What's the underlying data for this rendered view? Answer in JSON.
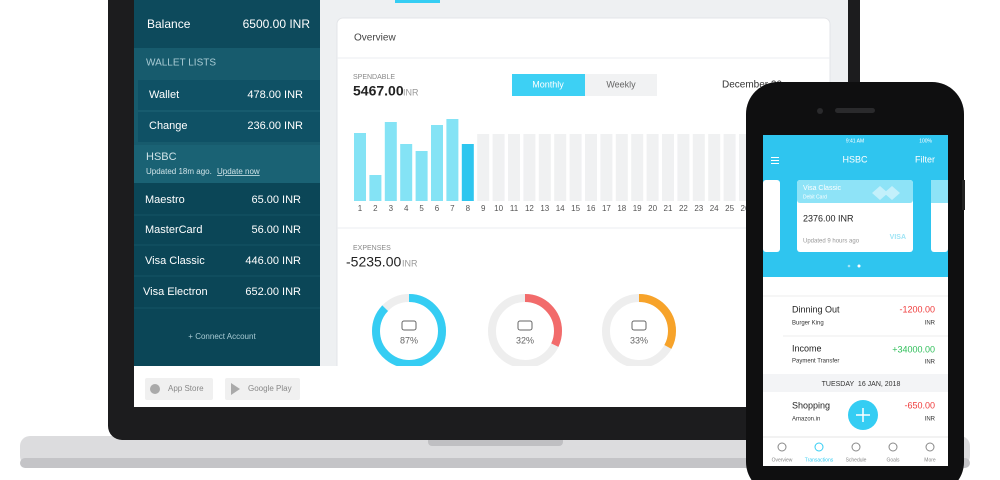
{
  "sidebar": {
    "balance_label": "Balance",
    "balance": "6500.00 INR",
    "wallet_header": "WALLET LISTS",
    "wallets": [
      {
        "name": "Wallet",
        "amount": "478.00 INR"
      },
      {
        "name": "Change",
        "amount": "236.00 INR"
      }
    ],
    "bank": {
      "name": "HSBC",
      "updated": "Updated 18m ago.",
      "update_link": "Update now"
    },
    "accounts": [
      {
        "name": "Maestro",
        "amount": "65.00 INR"
      },
      {
        "name": "MasterCard",
        "amount": "56.00 INR"
      },
      {
        "name": "Visa Classic",
        "amount": "446.00 INR"
      },
      {
        "name": "Visa Electron",
        "amount": "652.00 INR"
      }
    ],
    "connect": "+ Connect Account"
  },
  "overview": {
    "title": "Overview",
    "spendable_label": "SPENDABLE",
    "spendable_amount": "5467.00",
    "spendable_unit": "INR",
    "tabs": [
      "Monthly",
      "Weekly"
    ],
    "month": "December 20",
    "chart": {
      "type": "bar",
      "categories": [
        "1",
        "2",
        "3",
        "4",
        "5",
        "6",
        "7",
        "8",
        "9",
        "10",
        "11",
        "12",
        "13",
        "14",
        "15",
        "16",
        "17",
        "18",
        "19",
        "20",
        "21",
        "22",
        "23",
        "24",
        "25",
        "26"
      ],
      "values": [
        68,
        26,
        79,
        57,
        50,
        76,
        82,
        57,
        null,
        null,
        null,
        null,
        null,
        null,
        null,
        null,
        null,
        null,
        null,
        null,
        null,
        null,
        null,
        null,
        null,
        null
      ],
      "ylim": [
        0,
        85
      ],
      "color": "#84e3f5",
      "highlight": "8",
      "highlight_color": "#2ec6ef"
    },
    "expenses_label": "EXPENSES",
    "expenses_amount": "-5235.00",
    "expenses_unit": "INR",
    "expense_donuts": {
      "type": "donut",
      "values": [
        87,
        32,
        33
      ],
      "value_labels": [
        "87%",
        "32%",
        "33%"
      ],
      "colors": [
        "#35cdf3",
        "#f26b6b",
        "#f7a32a"
      ]
    }
  },
  "stores": [
    "App Store",
    "Google Play"
  ],
  "phone": {
    "status_time": "9:41 AM",
    "battery": "100%",
    "title": "HSBC",
    "action": "Filter",
    "card": {
      "name": "Visa Classic",
      "type": "Debit Card",
      "amount": "2376.00 INR",
      "updated": "Updated 9 hours ago",
      "brand": "VISA"
    },
    "transactions": [
      {
        "title": "Dinning Out",
        "sub": "Burger King",
        "amount": "-1200.00",
        "unit": "INR"
      },
      {
        "title": "Income",
        "sub": "Payment Transfer",
        "amount": "+34000.00",
        "unit": "INR"
      }
    ],
    "date_divider": "TUESDAY  16 JAN, 2018",
    "later": [
      {
        "title": "Shopping",
        "sub": "Amazon.in",
        "amount": "-650.00",
        "unit": "INR"
      }
    ],
    "tabs": [
      "Overview",
      "Transactions",
      "Schedule",
      "Goals",
      "More"
    ]
  }
}
